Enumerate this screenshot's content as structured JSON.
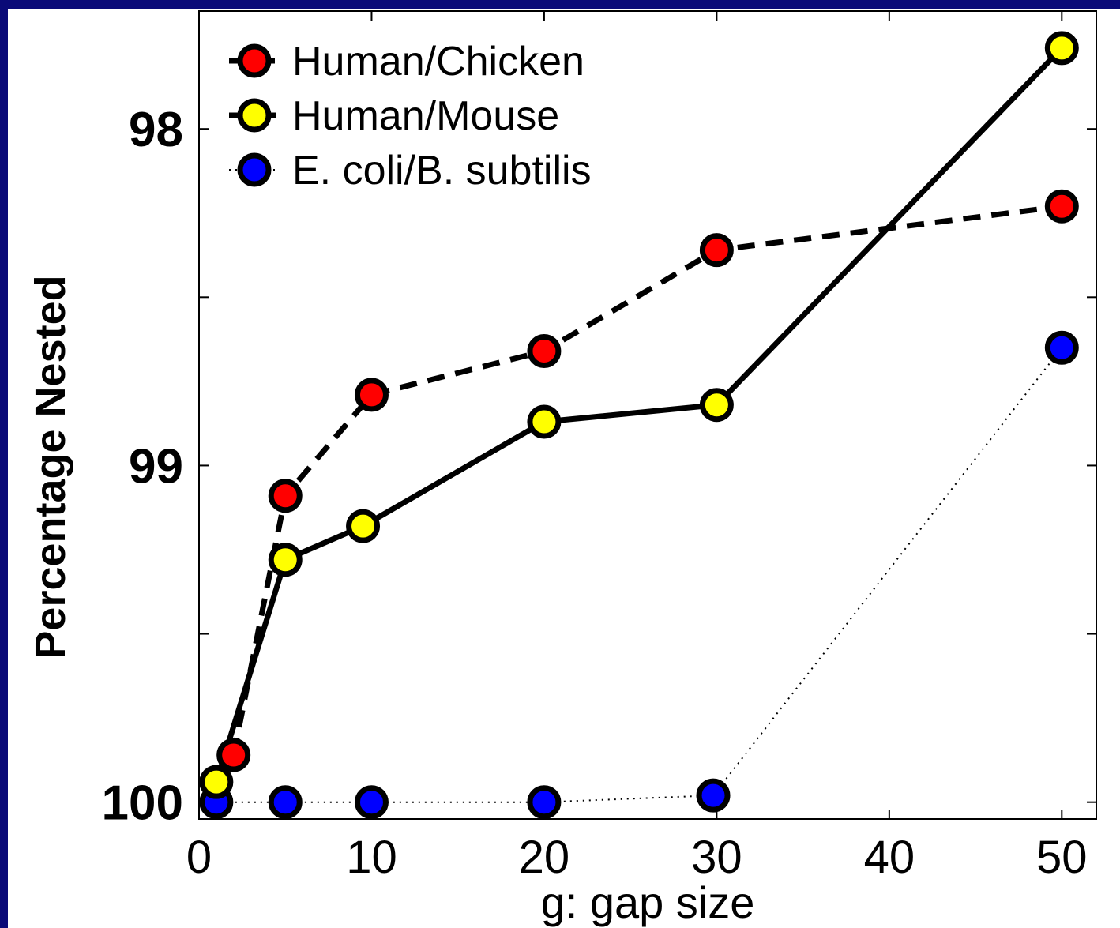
{
  "chart_data": {
    "type": "line",
    "xlabel": "g: gap size",
    "ylabel": "Percentage Nested",
    "xlim": [
      0,
      52
    ],
    "ylim": [
      97.65,
      100.05
    ],
    "y_reversed": true,
    "x_ticks": [
      0,
      10,
      20,
      30,
      40,
      50
    ],
    "x_tick_labels": [
      "0",
      "10",
      "20",
      "30",
      "40",
      "50"
    ],
    "y_ticks": [
      98,
      98.5,
      99,
      99.5,
      100
    ],
    "y_tick_labels": [
      "98",
      "",
      "99",
      "",
      "100"
    ],
    "grid": false,
    "legend_position": "top-left",
    "series": [
      {
        "name": "Human/Chicken",
        "color": "#ff0000",
        "line_style": "dashed",
        "x": [
          2,
          5,
          10,
          20,
          30,
          50
        ],
        "y": [
          99.86,
          99.09,
          98.79,
          98.66,
          98.36,
          98.23
        ]
      },
      {
        "name": "Human/Mouse",
        "color": "#ffff00",
        "line_style": "solid",
        "x": [
          1,
          5,
          9.5,
          20,
          30,
          50
        ],
        "y": [
          99.94,
          99.28,
          99.18,
          98.87,
          98.82,
          97.76
        ]
      },
      {
        "name": "E. coli/B. subtilis",
        "color": "#0000ff",
        "line_style": "dotted",
        "x": [
          1,
          5,
          10,
          20,
          29.8,
          50
        ],
        "y": [
          100.0,
          100.0,
          100.0,
          100.0,
          99.98,
          98.65
        ]
      }
    ]
  }
}
